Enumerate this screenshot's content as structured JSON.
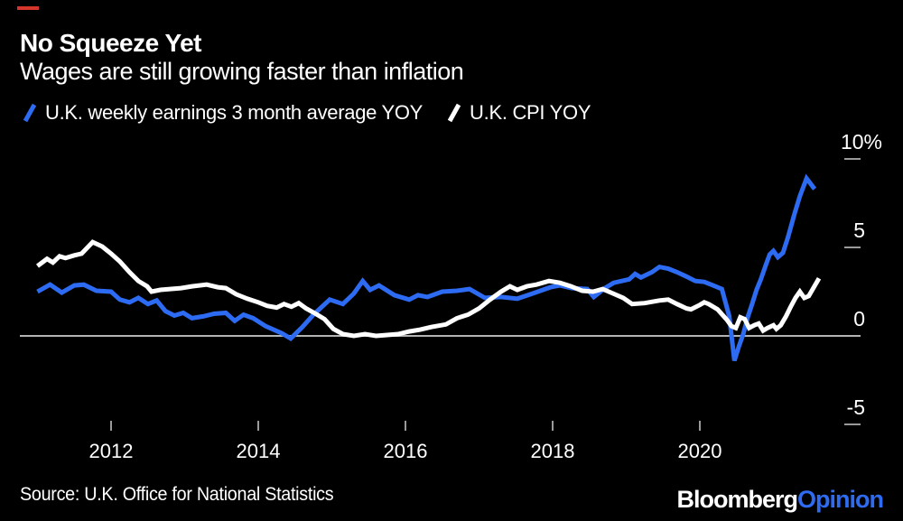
{
  "header": {
    "title": "No Squeeze Yet",
    "subtitle": "Wages are still growing faster than inflation"
  },
  "legend": [
    {
      "label": "U.K. weekly earnings 3 month average YOY",
      "color": "#2d6bf2"
    },
    {
      "label": "U.K. CPI YOY",
      "color": "#ffffff"
    }
  ],
  "footer": {
    "source": "Source: U.K. Office for National Statistics",
    "logo": {
      "bloomberg": "Bloomberg",
      "opinion": "Opinion"
    }
  },
  "colors": {
    "background": "#000000",
    "earnings_line": "#2d6bf2",
    "cpi_line": "#ffffff",
    "zero_line": "#b3b3b3",
    "tick": "#9a9a9a",
    "accent_red": "#d5352b",
    "logo_opinion_blue": "#2e6bf0"
  },
  "chart_data": {
    "type": "line",
    "title": "No Squeeze Yet",
    "subtitle": "Wages are still growing faster than inflation",
    "x_axis": {
      "ticks": [
        2012,
        2014,
        2016,
        2018,
        2020
      ],
      "range": [
        2010.8,
        2021.8
      ],
      "unit": "year"
    },
    "y_axis": {
      "ticks": [
        {
          "value": 10,
          "label": "10%"
        },
        {
          "value": 5,
          "label": "5"
        },
        {
          "value": 0,
          "label": "0"
        },
        {
          "value": -5,
          "label": "-5"
        }
      ],
      "range": [
        -5.5,
        10.5
      ],
      "unit": "percent"
    },
    "grid": "zero-line-only",
    "legend_position": "top-left",
    "series": [
      {
        "name": "U.K. weekly earnings 3 month average YOY",
        "color": "#2d6bf2",
        "points": [
          [
            2011.0,
            2.5
          ],
          [
            2011.17,
            2.9
          ],
          [
            2011.33,
            2.45
          ],
          [
            2011.5,
            2.85
          ],
          [
            2011.63,
            2.9
          ],
          [
            2011.8,
            2.55
          ],
          [
            2012.0,
            2.5
          ],
          [
            2012.12,
            2.05
          ],
          [
            2012.25,
            1.9
          ],
          [
            2012.37,
            2.15
          ],
          [
            2012.5,
            1.8
          ],
          [
            2012.62,
            2.0
          ],
          [
            2012.74,
            1.4
          ],
          [
            2012.86,
            1.15
          ],
          [
            2012.98,
            1.3
          ],
          [
            2013.1,
            1.0
          ],
          [
            2013.25,
            1.1
          ],
          [
            2013.4,
            1.25
          ],
          [
            2013.56,
            1.3
          ],
          [
            2013.68,
            0.85
          ],
          [
            2013.8,
            1.2
          ],
          [
            2013.93,
            1.0
          ],
          [
            2014.1,
            0.55
          ],
          [
            2014.32,
            0.15
          ],
          [
            2014.44,
            -0.15
          ],
          [
            2014.6,
            0.5
          ],
          [
            2014.75,
            1.2
          ],
          [
            2014.97,
            2.05
          ],
          [
            2015.15,
            1.8
          ],
          [
            2015.3,
            2.4
          ],
          [
            2015.42,
            3.1
          ],
          [
            2015.52,
            2.6
          ],
          [
            2015.64,
            2.85
          ],
          [
            2015.85,
            2.3
          ],
          [
            2016.05,
            2.05
          ],
          [
            2016.17,
            2.3
          ],
          [
            2016.3,
            2.2
          ],
          [
            2016.5,
            2.5
          ],
          [
            2016.7,
            2.55
          ],
          [
            2016.87,
            2.65
          ],
          [
            2017.08,
            2.15
          ],
          [
            2017.3,
            2.2
          ],
          [
            2017.52,
            2.1
          ],
          [
            2017.73,
            2.4
          ],
          [
            2017.97,
            2.75
          ],
          [
            2018.1,
            2.85
          ],
          [
            2018.26,
            2.7
          ],
          [
            2018.47,
            2.65
          ],
          [
            2018.56,
            2.2
          ],
          [
            2018.71,
            2.7
          ],
          [
            2018.83,
            3.0
          ],
          [
            2019.04,
            3.2
          ],
          [
            2019.12,
            3.5
          ],
          [
            2019.2,
            3.3
          ],
          [
            2019.35,
            3.6
          ],
          [
            2019.45,
            3.9
          ],
          [
            2019.57,
            3.8
          ],
          [
            2019.69,
            3.6
          ],
          [
            2019.82,
            3.35
          ],
          [
            2019.94,
            3.1
          ],
          [
            2020.06,
            3.05
          ],
          [
            2020.18,
            2.85
          ],
          [
            2020.3,
            2.65
          ],
          [
            2020.4,
            1.1
          ],
          [
            2020.47,
            -1.4
          ],
          [
            2020.53,
            -0.6
          ],
          [
            2020.59,
            0.1
          ],
          [
            2020.65,
            1.05
          ],
          [
            2020.71,
            1.8
          ],
          [
            2020.77,
            2.6
          ],
          [
            2020.83,
            3.2
          ],
          [
            2020.9,
            4.05
          ],
          [
            2020.95,
            4.6
          ],
          [
            2021.0,
            4.8
          ],
          [
            2021.06,
            4.45
          ],
          [
            2021.13,
            4.7
          ],
          [
            2021.2,
            5.6
          ],
          [
            2021.28,
            6.8
          ],
          [
            2021.36,
            7.9
          ],
          [
            2021.45,
            8.9
          ],
          [
            2021.56,
            8.3
          ]
        ]
      },
      {
        "name": "U.K. CPI YOY",
        "color": "#ffffff",
        "points": [
          [
            2011.0,
            3.95
          ],
          [
            2011.13,
            4.35
          ],
          [
            2011.21,
            4.15
          ],
          [
            2011.3,
            4.5
          ],
          [
            2011.38,
            4.4
          ],
          [
            2011.5,
            4.55
          ],
          [
            2011.6,
            4.65
          ],
          [
            2011.75,
            5.3
          ],
          [
            2011.88,
            5.05
          ],
          [
            2012.0,
            4.65
          ],
          [
            2012.12,
            4.2
          ],
          [
            2012.25,
            3.6
          ],
          [
            2012.37,
            3.1
          ],
          [
            2012.49,
            2.8
          ],
          [
            2012.55,
            2.5
          ],
          [
            2012.67,
            2.6
          ],
          [
            2012.8,
            2.65
          ],
          [
            2012.95,
            2.7
          ],
          [
            2013.1,
            2.8
          ],
          [
            2013.3,
            2.9
          ],
          [
            2013.45,
            2.75
          ],
          [
            2013.56,
            2.7
          ],
          [
            2013.7,
            2.35
          ],
          [
            2013.85,
            2.1
          ],
          [
            2014.0,
            1.9
          ],
          [
            2014.12,
            1.7
          ],
          [
            2014.25,
            1.6
          ],
          [
            2014.35,
            1.8
          ],
          [
            2014.45,
            1.65
          ],
          [
            2014.55,
            1.85
          ],
          [
            2014.65,
            1.55
          ],
          [
            2014.78,
            1.25
          ],
          [
            2014.9,
            0.95
          ],
          [
            2015.02,
            0.4
          ],
          [
            2015.15,
            0.1
          ],
          [
            2015.3,
            0.0
          ],
          [
            2015.45,
            0.1
          ],
          [
            2015.6,
            0.0
          ],
          [
            2015.75,
            0.05
          ],
          [
            2015.9,
            0.1
          ],
          [
            2016.05,
            0.25
          ],
          [
            2016.2,
            0.35
          ],
          [
            2016.35,
            0.5
          ],
          [
            2016.55,
            0.65
          ],
          [
            2016.7,
            1.0
          ],
          [
            2016.85,
            1.2
          ],
          [
            2017.0,
            1.55
          ],
          [
            2017.15,
            2.05
          ],
          [
            2017.3,
            2.5
          ],
          [
            2017.42,
            2.8
          ],
          [
            2017.52,
            2.6
          ],
          [
            2017.65,
            2.8
          ],
          [
            2017.78,
            2.9
          ],
          [
            2017.95,
            3.1
          ],
          [
            2018.1,
            3.0
          ],
          [
            2018.25,
            2.8
          ],
          [
            2018.4,
            2.55
          ],
          [
            2018.55,
            2.5
          ],
          [
            2018.68,
            2.65
          ],
          [
            2018.82,
            2.4
          ],
          [
            2018.96,
            2.15
          ],
          [
            2019.08,
            1.8
          ],
          [
            2019.25,
            1.85
          ],
          [
            2019.45,
            2.0
          ],
          [
            2019.57,
            2.05
          ],
          [
            2019.69,
            1.8
          ],
          [
            2019.82,
            1.55
          ],
          [
            2019.88,
            1.5
          ],
          [
            2020.0,
            1.75
          ],
          [
            2020.06,
            1.9
          ],
          [
            2020.12,
            1.8
          ],
          [
            2020.24,
            1.5
          ],
          [
            2020.37,
            0.9
          ],
          [
            2020.43,
            0.55
          ],
          [
            2020.49,
            0.45
          ],
          [
            2020.55,
            1.05
          ],
          [
            2020.61,
            0.95
          ],
          [
            2020.67,
            0.45
          ],
          [
            2020.74,
            0.6
          ],
          [
            2020.8,
            0.7
          ],
          [
            2020.86,
            0.3
          ],
          [
            2020.92,
            0.45
          ],
          [
            2021.0,
            0.6
          ],
          [
            2021.04,
            0.4
          ],
          [
            2021.1,
            0.6
          ],
          [
            2021.17,
            1.1
          ],
          [
            2021.23,
            1.6
          ],
          [
            2021.3,
            2.15
          ],
          [
            2021.36,
            2.5
          ],
          [
            2021.42,
            2.15
          ],
          [
            2021.48,
            2.25
          ],
          [
            2021.62,
            3.25
          ]
        ]
      }
    ]
  }
}
